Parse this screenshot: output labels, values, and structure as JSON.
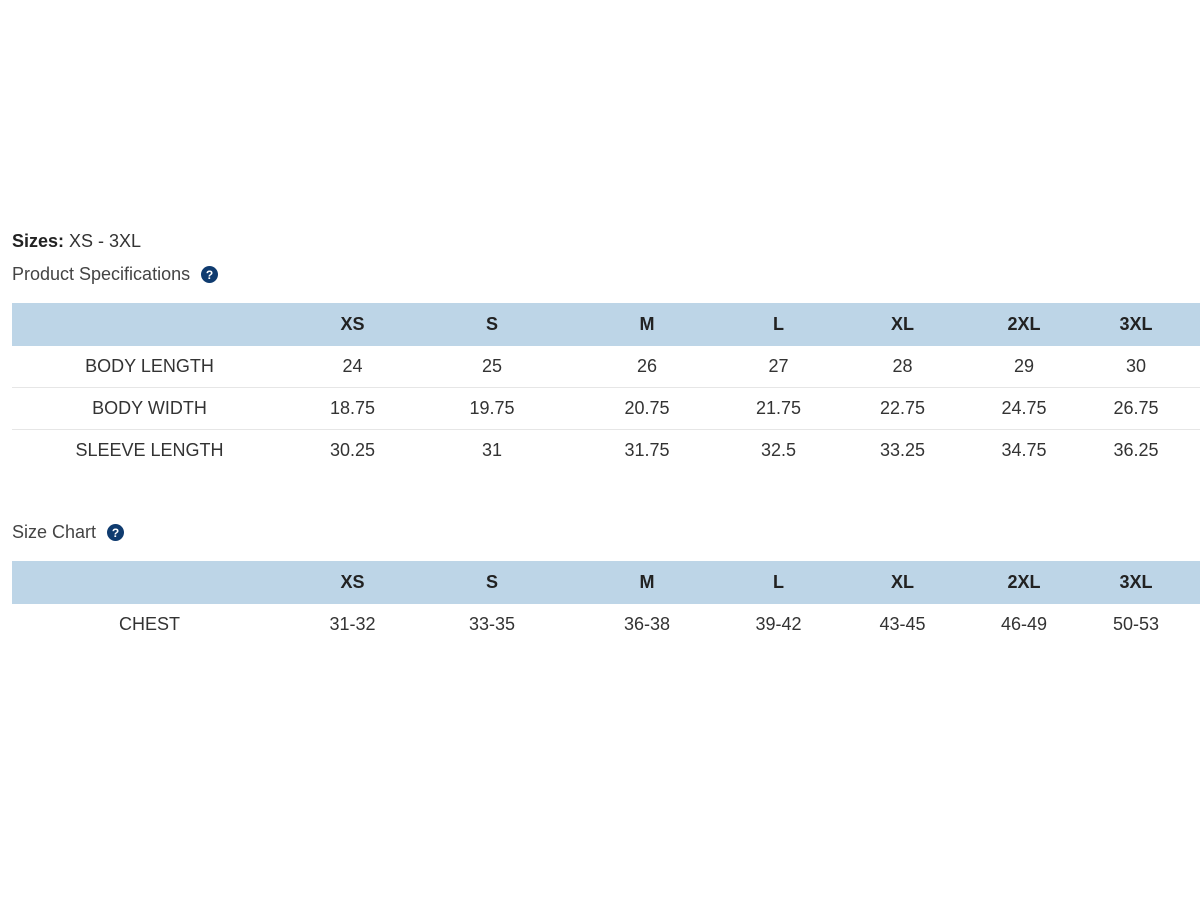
{
  "sizes": {
    "label": "Sizes:",
    "value": " XS - 3XL"
  },
  "specs": {
    "title": "Product Specifications",
    "headers": [
      "",
      "XS",
      "S",
      "M",
      "L",
      "XL",
      "2XL",
      "3XL"
    ],
    "rows": [
      {
        "label": "BODY LENGTH",
        "values": [
          "24",
          "25",
          "26",
          "27",
          "28",
          "29",
          "30"
        ]
      },
      {
        "label": "BODY WIDTH",
        "values": [
          "18.75",
          "19.75",
          "20.75",
          "21.75",
          "22.75",
          "24.75",
          "26.75"
        ]
      },
      {
        "label": "SLEEVE LENGTH",
        "values": [
          "30.25",
          "31",
          "31.75",
          "32.5",
          "33.25",
          "34.75",
          "36.25"
        ]
      }
    ]
  },
  "size_chart": {
    "title": "Size Chart",
    "headers": [
      "",
      "XS",
      "S",
      "M",
      "L",
      "XL",
      "2XL",
      "3XL"
    ],
    "rows": [
      {
        "label": "CHEST",
        "values": [
          "31-32",
          "33-35",
          "36-38",
          "39-42",
          "43-45",
          "46-49",
          "50-53"
        ]
      }
    ]
  },
  "icons": {
    "help": "question-circle-icon",
    "help_glyph": "?"
  },
  "colors": {
    "header_bg": "#bdd5e7",
    "help_icon_bg": "#0f3b6f"
  }
}
